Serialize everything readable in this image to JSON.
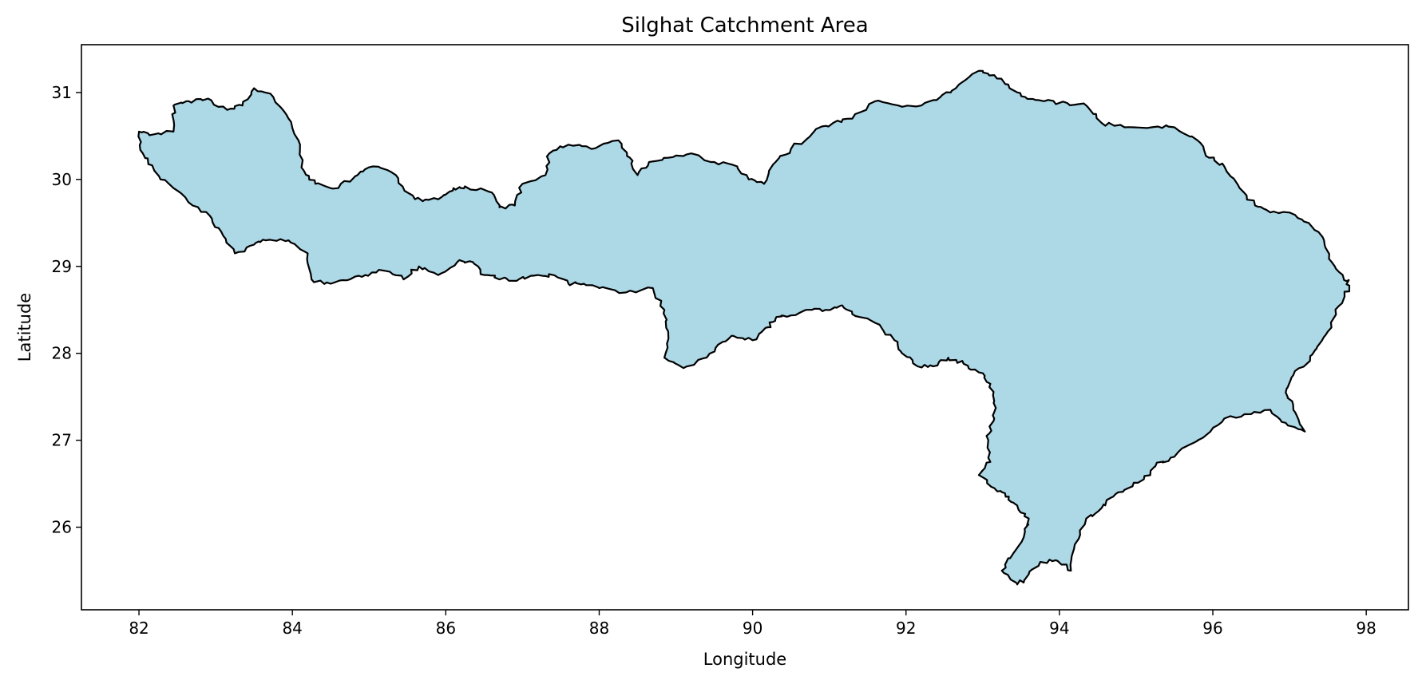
{
  "chart_data": {
    "type": "map",
    "title": "Silghat Catchment Area",
    "xlabel": "Longitude",
    "ylabel": "Latitude",
    "xlim": [
      81.25,
      98.55
    ],
    "ylim": [
      25.05,
      31.55
    ],
    "xticks": [
      82,
      84,
      86,
      88,
      90,
      92,
      94,
      96,
      98
    ],
    "yticks": [
      26,
      27,
      28,
      29,
      30,
      31
    ],
    "grid": false,
    "fill_color": "#add8e6",
    "edge_color": "#000000",
    "boundary": [
      [
        82.0,
        30.55
      ],
      [
        82.2,
        30.52
      ],
      [
        82.45,
        30.55
      ],
      [
        82.45,
        30.85
      ],
      [
        82.65,
        30.9
      ],
      [
        82.9,
        30.93
      ],
      [
        83.15,
        30.8
      ],
      [
        83.35,
        30.85
      ],
      [
        83.5,
        31.05
      ],
      [
        83.75,
        30.95
      ],
      [
        83.95,
        30.7
      ],
      [
        84.1,
        30.4
      ],
      [
        84.15,
        30.1
      ],
      [
        84.3,
        29.95
      ],
      [
        84.6,
        29.9
      ],
      [
        84.85,
        30.05
      ],
      [
        85.05,
        30.15
      ],
      [
        85.35,
        30.05
      ],
      [
        85.5,
        29.85
      ],
      [
        85.7,
        29.75
      ],
      [
        85.95,
        29.8
      ],
      [
        86.1,
        29.9
      ],
      [
        86.25,
        29.92
      ],
      [
        86.6,
        29.85
      ],
      [
        86.7,
        29.68
      ],
      [
        86.9,
        29.7
      ],
      [
        87.0,
        29.95
      ],
      [
        87.3,
        30.05
      ],
      [
        87.35,
        30.3
      ],
      [
        87.6,
        30.4
      ],
      [
        87.9,
        30.35
      ],
      [
        88.25,
        30.45
      ],
      [
        88.4,
        30.25
      ],
      [
        88.5,
        30.05
      ],
      [
        88.65,
        30.2
      ],
      [
        88.9,
        30.25
      ],
      [
        89.2,
        30.3
      ],
      [
        89.5,
        30.2
      ],
      [
        89.8,
        30.15
      ],
      [
        89.95,
        30.0
      ],
      [
        90.15,
        29.95
      ],
      [
        90.3,
        30.2
      ],
      [
        90.5,
        30.35
      ],
      [
        90.8,
        30.55
      ],
      [
        91.05,
        30.65
      ],
      [
        91.3,
        30.7
      ],
      [
        91.6,
        30.9
      ],
      [
        91.9,
        30.85
      ],
      [
        92.2,
        30.85
      ],
      [
        92.45,
        30.95
      ],
      [
        92.65,
        31.05
      ],
      [
        92.95,
        31.25
      ],
      [
        93.15,
        31.2
      ],
      [
        93.35,
        31.05
      ],
      [
        93.55,
        30.95
      ],
      [
        93.8,
        30.9
      ],
      [
        94.1,
        30.88
      ],
      [
        94.35,
        30.85
      ],
      [
        94.55,
        30.65
      ],
      [
        94.85,
        30.6
      ],
      [
        95.2,
        30.6
      ],
      [
        95.5,
        30.6
      ],
      [
        95.8,
        30.45
      ],
      [
        95.95,
        30.25
      ],
      [
        96.15,
        30.15
      ],
      [
        96.35,
        29.9
      ],
      [
        96.55,
        29.7
      ],
      [
        96.75,
        29.62
      ],
      [
        97.05,
        29.6
      ],
      [
        97.25,
        29.5
      ],
      [
        97.45,
        29.3
      ],
      [
        97.55,
        29.05
      ],
      [
        97.7,
        28.88
      ],
      [
        97.78,
        28.78
      ],
      [
        97.65,
        28.55
      ],
      [
        97.5,
        28.25
      ],
      [
        97.35,
        28.05
      ],
      [
        97.25,
        27.9
      ],
      [
        97.05,
        27.75
      ],
      [
        96.95,
        27.55
      ],
      [
        97.05,
        27.35
      ],
      [
        97.2,
        27.1
      ],
      [
        96.95,
        27.2
      ],
      [
        96.75,
        27.35
      ],
      [
        96.5,
        27.3
      ],
      [
        96.15,
        27.25
      ],
      [
        95.9,
        27.05
      ],
      [
        95.7,
        26.95
      ],
      [
        95.45,
        26.8
      ],
      [
        95.25,
        26.7
      ],
      [
        95.1,
        26.55
      ],
      [
        94.9,
        26.45
      ],
      [
        94.7,
        26.35
      ],
      [
        94.55,
        26.22
      ],
      [
        94.35,
        26.1
      ],
      [
        94.2,
        25.8
      ],
      [
        94.15,
        25.5
      ],
      [
        93.95,
        25.62
      ],
      [
        93.75,
        25.6
      ],
      [
        93.55,
        25.4
      ],
      [
        93.45,
        25.35
      ],
      [
        93.25,
        25.5
      ],
      [
        93.4,
        25.7
      ],
      [
        93.55,
        25.95
      ],
      [
        93.6,
        26.1
      ],
      [
        93.45,
        26.25
      ],
      [
        93.3,
        26.35
      ],
      [
        93.15,
        26.45
      ],
      [
        92.95,
        26.6
      ],
      [
        93.1,
        26.75
      ],
      [
        93.05,
        27.05
      ],
      [
        93.15,
        27.25
      ],
      [
        93.15,
        27.45
      ],
      [
        93.1,
        27.65
      ],
      [
        92.95,
        27.78
      ],
      [
        92.75,
        27.88
      ],
      [
        92.55,
        27.95
      ],
      [
        92.35,
        27.85
      ],
      [
        92.15,
        27.85
      ],
      [
        91.95,
        28.0
      ],
      [
        91.85,
        28.15
      ],
      [
        91.6,
        28.35
      ],
      [
        91.3,
        28.45
      ],
      [
        91.15,
        28.55
      ],
      [
        90.95,
        28.5
      ],
      [
        90.7,
        28.5
      ],
      [
        90.45,
        28.42
      ],
      [
        90.3,
        28.4
      ],
      [
        90.2,
        28.3
      ],
      [
        90.0,
        28.15
      ],
      [
        89.75,
        28.2
      ],
      [
        89.55,
        28.1
      ],
      [
        89.4,
        27.95
      ],
      [
        89.1,
        27.83
      ],
      [
        88.85,
        27.95
      ],
      [
        88.9,
        28.25
      ],
      [
        88.85,
        28.5
      ],
      [
        88.7,
        28.75
      ],
      [
        88.35,
        28.7
      ],
      [
        88.0,
        28.75
      ],
      [
        87.8,
        28.8
      ],
      [
        87.6,
        28.8
      ],
      [
        87.4,
        28.9
      ],
      [
        87.2,
        28.9
      ],
      [
        86.95,
        28.85
      ],
      [
        86.7,
        28.85
      ],
      [
        86.5,
        28.9
      ],
      [
        86.35,
        29.05
      ],
      [
        86.15,
        29.05
      ],
      [
        85.9,
        28.9
      ],
      [
        85.65,
        29.0
      ],
      [
        85.45,
        28.85
      ],
      [
        85.2,
        28.95
      ],
      [
        84.95,
        28.9
      ],
      [
        84.75,
        28.85
      ],
      [
        84.5,
        28.8
      ],
      [
        84.25,
        28.85
      ],
      [
        84.2,
        29.15
      ],
      [
        83.95,
        29.3
      ],
      [
        83.65,
        29.3
      ],
      [
        83.5,
        29.25
      ],
      [
        83.25,
        29.15
      ],
      [
        83.1,
        29.35
      ],
      [
        82.95,
        29.55
      ],
      [
        82.7,
        29.7
      ],
      [
        82.45,
        29.9
      ],
      [
        82.2,
        30.1
      ],
      [
        82.05,
        30.3
      ]
    ]
  }
}
